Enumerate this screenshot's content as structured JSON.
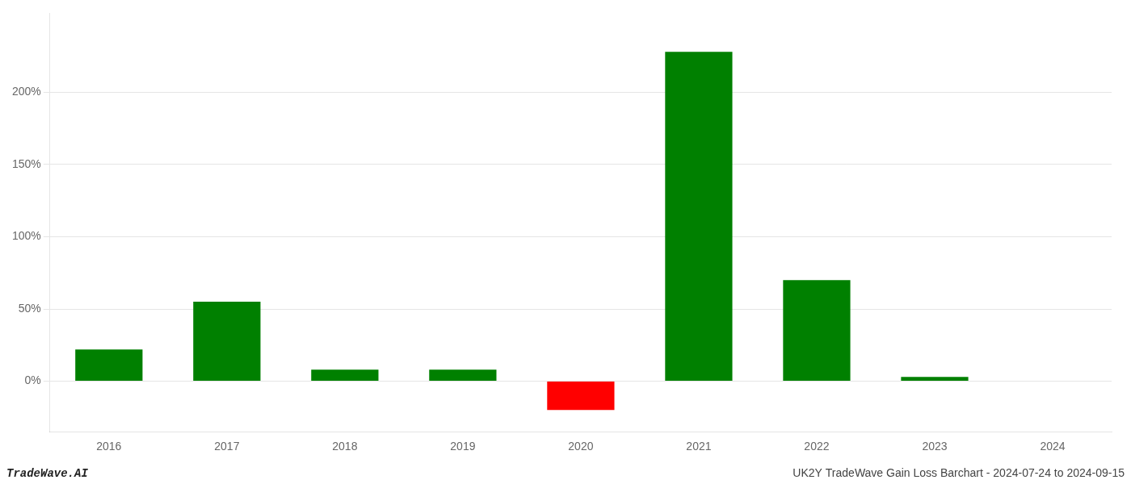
{
  "chart_data": {
    "type": "bar",
    "categories": [
      "2016",
      "2017",
      "2018",
      "2019",
      "2020",
      "2021",
      "2022",
      "2023",
      "2024"
    ],
    "values": [
      22,
      55,
      8,
      8,
      -20,
      228,
      70,
      3,
      0
    ],
    "colors": [
      "#008000",
      "#008000",
      "#008000",
      "#008000",
      "#ff0000",
      "#008000",
      "#008000",
      "#008000",
      "#008000"
    ],
    "ylim": [
      -35,
      255
    ],
    "yticks": [
      {
        "value": 0,
        "label": "0%"
      },
      {
        "value": 50,
        "label": "50%"
      },
      {
        "value": 100,
        "label": "100%"
      },
      {
        "value": 150,
        "label": "150%"
      },
      {
        "value": 200,
        "label": "200%"
      }
    ],
    "grid": true,
    "annotations": [
      "TradeWave.AI",
      "UK2Y TradeWave Gain Loss Barchart - 2024-07-24 to 2024-09-15"
    ]
  }
}
